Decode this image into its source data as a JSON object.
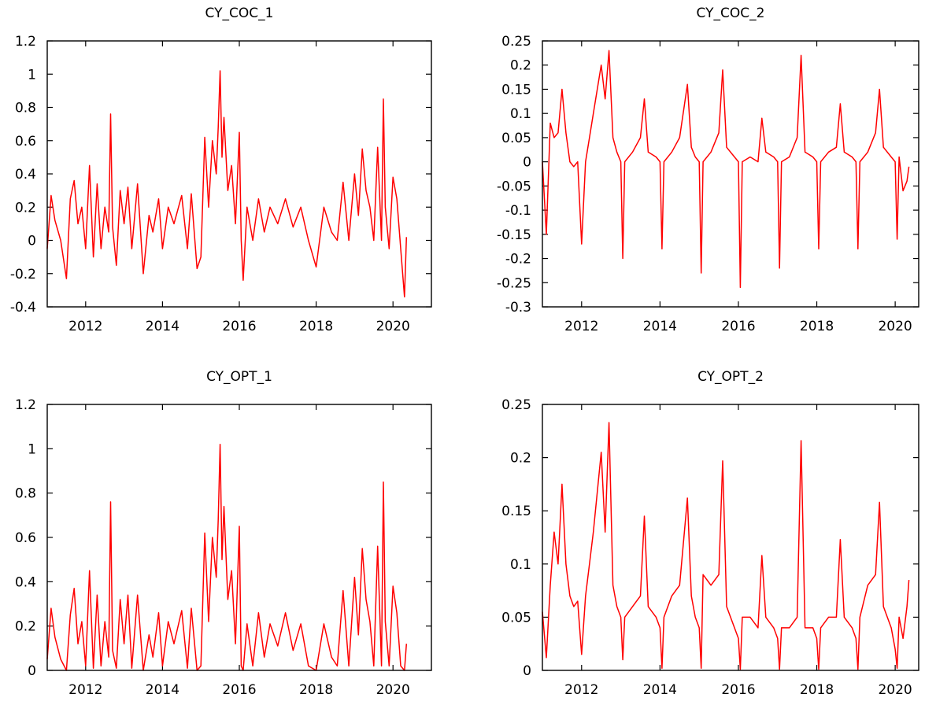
{
  "chart_data": [
    {
      "type": "line",
      "title": "CY_COC_1",
      "xlabel": "",
      "ylabel": "",
      "xlim": [
        2011.0,
        2021.0
      ],
      "ylim": [
        -0.4,
        1.2
      ],
      "xticks": [
        "2012",
        "2014",
        "2016",
        "2018",
        "2020"
      ],
      "yticks": [
        "-0.4",
        "-0.2",
        "0",
        "0.2",
        "0.4",
        "0.6",
        "0.8",
        "1",
        "1.2"
      ],
      "grid": false,
      "color": "#ff0000",
      "series": [
        {
          "x": [
            2011.0,
            2011.1,
            2011.2,
            2011.35,
            2011.5,
            2011.6,
            2011.7,
            2011.8,
            2011.9,
            2012.0,
            2012.1,
            2012.2,
            2012.3,
            2012.4,
            2012.5,
            2012.6,
            2012.65,
            2012.7,
            2012.8,
            2012.9,
            2013.0,
            2013.1,
            2013.2,
            2013.35,
            2013.5,
            2013.65,
            2013.75,
            2013.9,
            2014.0,
            2014.15,
            2014.3,
            2014.5,
            2014.65,
            2014.75,
            2014.9,
            2015.0,
            2015.1,
            2015.2,
            2015.3,
            2015.4,
            2015.45,
            2015.5,
            2015.55,
            2015.6,
            2015.7,
            2015.8,
            2015.9,
            2016.0,
            2016.05,
            2016.1,
            2016.2,
            2016.35,
            2016.5,
            2016.65,
            2016.8,
            2017.0,
            2017.2,
            2017.4,
            2017.6,
            2017.8,
            2018.0,
            2018.2,
            2018.4,
            2018.55,
            2018.7,
            2018.85,
            2019.0,
            2019.1,
            2019.2,
            2019.3,
            2019.4,
            2019.5,
            2019.6,
            2019.7,
            2019.75,
            2019.8,
            2019.9,
            2020.0,
            2020.1,
            2020.2,
            2020.3,
            2020.35
          ],
          "y": [
            -0.05,
            0.27,
            0.12,
            0.0,
            -0.23,
            0.25,
            0.36,
            0.1,
            0.2,
            -0.05,
            0.45,
            -0.1,
            0.34,
            -0.05,
            0.2,
            0.05,
            0.76,
            0.08,
            -0.15,
            0.3,
            0.1,
            0.32,
            -0.05,
            0.34,
            -0.2,
            0.15,
            0.05,
            0.25,
            -0.05,
            0.2,
            0.1,
            0.27,
            -0.05,
            0.28,
            -0.17,
            -0.1,
            0.62,
            0.2,
            0.6,
            0.4,
            0.68,
            1.02,
            0.5,
            0.74,
            0.3,
            0.45,
            0.1,
            0.65,
            0.0,
            -0.24,
            0.2,
            0.0,
            0.25,
            0.05,
            0.2,
            0.1,
            0.25,
            0.08,
            0.2,
            0.0,
            -0.16,
            0.2,
            0.05,
            0.0,
            0.35,
            0.0,
            0.4,
            0.15,
            0.55,
            0.3,
            0.2,
            0.0,
            0.56,
            0.0,
            0.85,
            0.2,
            -0.05,
            0.38,
            0.25,
            -0.05,
            -0.34,
            0.02
          ]
        }
      ]
    },
    {
      "type": "line",
      "title": "CY_COC_2",
      "xlabel": "",
      "ylabel": "",
      "xlim": [
        2011.0,
        2020.6
      ],
      "ylim": [
        -0.3,
        0.25
      ],
      "xticks": [
        "2012",
        "2014",
        "2016",
        "2018",
        "2020"
      ],
      "yticks": [
        "-0.3",
        "-0.25",
        "-0.2",
        "-0.15",
        "-0.1",
        "-0.05",
        "0",
        "0.05",
        "0.1",
        "0.15",
        "0.2",
        "0.25"
      ],
      "grid": false,
      "color": "#ff0000",
      "series": [
        {
          "x": [
            2011.0,
            2011.1,
            2011.2,
            2011.3,
            2011.4,
            2011.5,
            2011.6,
            2011.7,
            2011.8,
            2011.9,
            2012.0,
            2012.1,
            2012.2,
            2012.3,
            2012.5,
            2012.6,
            2012.7,
            2012.8,
            2012.9,
            2013.0,
            2013.05,
            2013.1,
            2013.3,
            2013.5,
            2013.6,
            2013.7,
            2013.9,
            2014.0,
            2014.05,
            2014.1,
            2014.3,
            2014.5,
            2014.7,
            2014.8,
            2014.9,
            2015.0,
            2015.05,
            2015.1,
            2015.3,
            2015.5,
            2015.6,
            2015.7,
            2015.9,
            2016.0,
            2016.05,
            2016.1,
            2016.3,
            2016.5,
            2016.6,
            2016.7,
            2016.9,
            2017.0,
            2017.05,
            2017.1,
            2017.3,
            2017.5,
            2017.6,
            2017.7,
            2017.9,
            2018.0,
            2018.05,
            2018.1,
            2018.3,
            2018.5,
            2018.6,
            2018.7,
            2018.9,
            2019.0,
            2019.05,
            2019.1,
            2019.3,
            2019.5,
            2019.6,
            2019.7,
            2019.9,
            2020.0,
            2020.05,
            2020.1,
            2020.2,
            2020.3,
            2020.35
          ],
          "y": [
            0.0,
            -0.15,
            0.08,
            0.05,
            0.06,
            0.15,
            0.06,
            0.0,
            -0.01,
            0.0,
            -0.17,
            0.0,
            0.05,
            0.1,
            0.2,
            0.13,
            0.23,
            0.05,
            0.02,
            0.0,
            -0.2,
            0.0,
            0.02,
            0.05,
            0.13,
            0.02,
            0.01,
            0.0,
            -0.18,
            0.0,
            0.02,
            0.05,
            0.16,
            0.03,
            0.01,
            0.0,
            -0.23,
            0.0,
            0.02,
            0.06,
            0.19,
            0.03,
            0.01,
            0.0,
            -0.26,
            0.0,
            0.01,
            0.0,
            0.09,
            0.02,
            0.01,
            0.0,
            -0.22,
            0.0,
            0.01,
            0.05,
            0.22,
            0.02,
            0.01,
            0.0,
            -0.18,
            0.0,
            0.02,
            0.03,
            0.12,
            0.02,
            0.01,
            0.0,
            -0.18,
            0.0,
            0.02,
            0.06,
            0.15,
            0.03,
            0.01,
            0.0,
            -0.16,
            0.01,
            -0.06,
            -0.04,
            -0.01
          ]
        }
      ]
    },
    {
      "type": "line",
      "title": "CY_OPT_1",
      "xlabel": "",
      "ylabel": "",
      "xlim": [
        2011.0,
        2021.0
      ],
      "ylim": [
        0,
        1.2
      ],
      "xticks": [
        "2012",
        "2014",
        "2016",
        "2018",
        "2020"
      ],
      "yticks": [
        "0",
        "0.2",
        "0.4",
        "0.6",
        "0.8",
        "1",
        "1.2"
      ],
      "grid": false,
      "color": "#ff0000",
      "series": [
        {
          "x": [
            2011.0,
            2011.1,
            2011.2,
            2011.35,
            2011.5,
            2011.6,
            2011.7,
            2011.8,
            2011.9,
            2012.0,
            2012.1,
            2012.2,
            2012.3,
            2012.4,
            2012.5,
            2012.6,
            2012.65,
            2012.7,
            2012.8,
            2012.9,
            2013.0,
            2013.1,
            2013.2,
            2013.35,
            2013.5,
            2013.65,
            2013.75,
            2013.9,
            2014.0,
            2014.15,
            2014.3,
            2014.5,
            2014.65,
            2014.75,
            2014.9,
            2015.0,
            2015.1,
            2015.2,
            2015.3,
            2015.4,
            2015.45,
            2015.5,
            2015.55,
            2015.6,
            2015.7,
            2015.8,
            2015.9,
            2016.0,
            2016.05,
            2016.1,
            2016.2,
            2016.35,
            2016.5,
            2016.65,
            2016.8,
            2017.0,
            2017.2,
            2017.4,
            2017.6,
            2017.8,
            2018.0,
            2018.2,
            2018.4,
            2018.55,
            2018.7,
            2018.85,
            2019.0,
            2019.1,
            2019.2,
            2019.3,
            2019.4,
            2019.5,
            2019.6,
            2019.7,
            2019.75,
            2019.8,
            2019.9,
            2020.0,
            2020.1,
            2020.2,
            2020.3,
            2020.35
          ],
          "y": [
            0.05,
            0.28,
            0.15,
            0.05,
            0.0,
            0.25,
            0.37,
            0.12,
            0.22,
            0.02,
            0.45,
            0.01,
            0.34,
            0.02,
            0.22,
            0.06,
            0.76,
            0.09,
            0.01,
            0.32,
            0.12,
            0.34,
            0.01,
            0.34,
            0.0,
            0.16,
            0.06,
            0.26,
            0.02,
            0.22,
            0.12,
            0.27,
            0.01,
            0.28,
            0.0,
            0.02,
            0.62,
            0.22,
            0.6,
            0.42,
            0.68,
            1.02,
            0.5,
            0.74,
            0.32,
            0.45,
            0.12,
            0.65,
            0.02,
            0.0,
            0.21,
            0.02,
            0.26,
            0.06,
            0.21,
            0.11,
            0.26,
            0.09,
            0.21,
            0.02,
            0.0,
            0.21,
            0.06,
            0.02,
            0.36,
            0.02,
            0.42,
            0.16,
            0.55,
            0.32,
            0.22,
            0.02,
            0.56,
            0.02,
            0.85,
            0.22,
            0.02,
            0.38,
            0.26,
            0.02,
            0.0,
            0.12
          ]
        }
      ]
    },
    {
      "type": "line",
      "title": "CY_OPT_2",
      "xlabel": "",
      "ylabel": "",
      "xlim": [
        2011.0,
        2020.6
      ],
      "ylim": [
        0,
        0.25
      ],
      "xticks": [
        "2012",
        "2014",
        "2016",
        "2018",
        "2020"
      ],
      "yticks": [
        "0",
        "0.05",
        "0.1",
        "0.15",
        "0.2",
        "0.25"
      ],
      "grid": false,
      "color": "#ff0000",
      "series": [
        {
          "x": [
            2011.0,
            2011.1,
            2011.2,
            2011.3,
            2011.4,
            2011.5,
            2011.6,
            2011.7,
            2011.8,
            2011.9,
            2012.0,
            2012.1,
            2012.2,
            2012.3,
            2012.5,
            2012.6,
            2012.7,
            2012.8,
            2012.9,
            2013.0,
            2013.05,
            2013.1,
            2013.3,
            2013.5,
            2013.6,
            2013.7,
            2013.9,
            2014.0,
            2014.05,
            2014.1,
            2014.3,
            2014.5,
            2014.7,
            2014.8,
            2014.9,
            2015.0,
            2015.05,
            2015.1,
            2015.3,
            2015.5,
            2015.6,
            2015.7,
            2015.9,
            2016.0,
            2016.05,
            2016.1,
            2016.3,
            2016.5,
            2016.6,
            2016.7,
            2016.9,
            2017.0,
            2017.05,
            2017.1,
            2017.3,
            2017.5,
            2017.6,
            2017.7,
            2017.9,
            2018.0,
            2018.05,
            2018.1,
            2018.3,
            2018.5,
            2018.6,
            2018.7,
            2018.9,
            2019.0,
            2019.05,
            2019.1,
            2019.3,
            2019.5,
            2019.6,
            2019.7,
            2019.9,
            2020.0,
            2020.05,
            2020.1,
            2020.2,
            2020.3,
            2020.35
          ],
          "y": [
            0.055,
            0.012,
            0.08,
            0.13,
            0.1,
            0.175,
            0.1,
            0.07,
            0.06,
            0.065,
            0.015,
            0.07,
            0.1,
            0.13,
            0.205,
            0.13,
            0.233,
            0.08,
            0.06,
            0.05,
            0.01,
            0.05,
            0.06,
            0.07,
            0.145,
            0.06,
            0.05,
            0.04,
            0.002,
            0.05,
            0.07,
            0.08,
            0.162,
            0.07,
            0.05,
            0.04,
            0.002,
            0.09,
            0.08,
            0.09,
            0.197,
            0.06,
            0.04,
            0.03,
            0.001,
            0.05,
            0.05,
            0.04,
            0.108,
            0.05,
            0.04,
            0.03,
            0.001,
            0.04,
            0.04,
            0.05,
            0.216,
            0.04,
            0.04,
            0.03,
            0.001,
            0.04,
            0.05,
            0.05,
            0.123,
            0.05,
            0.04,
            0.03,
            0.001,
            0.05,
            0.08,
            0.09,
            0.158,
            0.06,
            0.04,
            0.02,
            0.002,
            0.05,
            0.03,
            0.06,
            0.085
          ]
        }
      ]
    }
  ]
}
